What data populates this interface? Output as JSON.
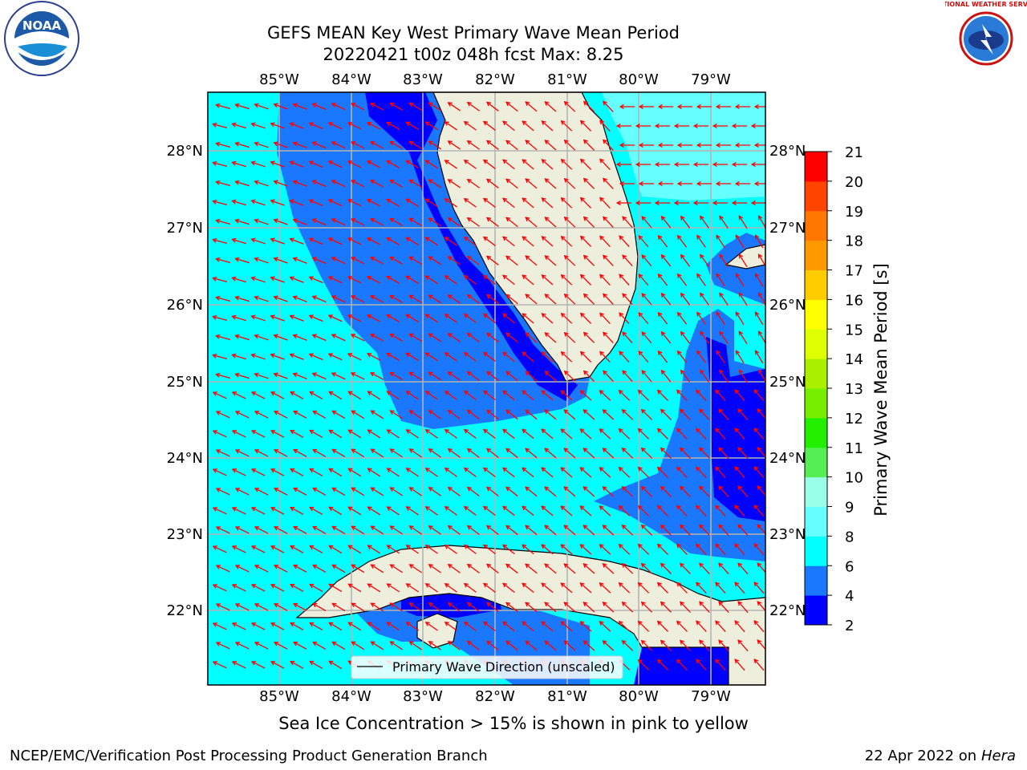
{
  "title": {
    "line1": "GEFS MEAN Key West Primary Wave Mean Period",
    "line2": "20220421 t00z 048h fcst   Max: 8.25"
  },
  "logos": {
    "left": {
      "icon": "noaa-logo",
      "text": "NOAA"
    },
    "right": {
      "icon": "national-weather-service-logo",
      "text": "NATIONAL WEATHER SERVICE"
    }
  },
  "map": {
    "lon_labels": [
      "85°W",
      "84°W",
      "83°W",
      "82°W",
      "81°W",
      "80°W",
      "79°W"
    ],
    "lat_labels": [
      "28°N",
      "27°N",
      "26°N",
      "25°N",
      "24°N",
      "23°N",
      "22°N"
    ],
    "lon_range": [
      -86.0,
      -78.25
    ],
    "lat_range": [
      21.05,
      28.75
    ],
    "arrow_color": "#ff0000",
    "land_color": "#eeeedd",
    "legend_label": "Primary Wave Direction (unscaled)"
  },
  "colorbar": {
    "label": "Primary Wave Mean Period [s]",
    "ticks": [
      "2",
      "4",
      "6",
      "8",
      "9",
      "10",
      "11",
      "12",
      "13",
      "14",
      "15",
      "16",
      "17",
      "18",
      "19",
      "20",
      "21"
    ],
    "colors": [
      "#0000ff",
      "#1a78ff",
      "#00ffff",
      "#66ffff",
      "#99ffe6",
      "#55ee55",
      "#22ee00",
      "#77ee00",
      "#aaee00",
      "#ddff00",
      "#ffff00",
      "#ffcc00",
      "#ff9900",
      "#ff7700",
      "#ff4400",
      "#ff0000"
    ]
  },
  "note": "Sea Ice Concentration > 15% is shown in pink to yellow",
  "footer": {
    "left": "NCEP/EMC/Verification Post Processing Product Generation Branch",
    "right_prefix": "22 Apr 2022 on ",
    "right_host": "Hera"
  }
}
